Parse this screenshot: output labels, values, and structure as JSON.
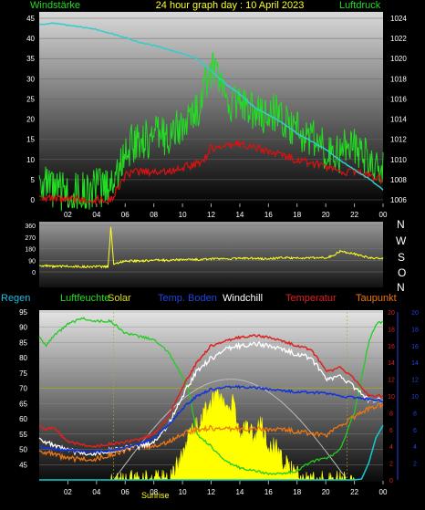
{
  "header": {
    "left": "Windstärke",
    "title": "24 hour graph day : 10 April 2023",
    "right": "Luftdruck",
    "legend2": [
      "Regen",
      "Luftfeuchte",
      "Solar",
      "Temp. Boden",
      "Windchill",
      "Temperatur",
      "Taupunkt"
    ]
  },
  "compass": [
    "N",
    "W",
    "S",
    "O",
    "N"
  ],
  "sunrise_label": "Sunrise",
  "colors": {
    "wind_gust": "#22dd22",
    "wind_avg": "#dd1111",
    "pressure": "#33cccc",
    "wind_dir": "#ffff22",
    "humidity": "#22cc22",
    "solar": "#ffff00",
    "soil": "#1133dd",
    "windchill": "#ffffff",
    "temperature": "#dd2222",
    "dewpoint": "#ee7711",
    "rain": "#11cccc"
  },
  "chart_data": [
    {
      "type": "line",
      "title": "24 hour graph day : 10 April 2023",
      "x_ticks": [
        "02",
        "04",
        "06",
        "08",
        "10",
        "12",
        "14",
        "16",
        "18",
        "20",
        "22",
        "00"
      ],
      "ylim_left": [
        0,
        45
      ],
      "yticks_left": [
        "0",
        "5",
        "10",
        "15",
        "20",
        "25",
        "30",
        "35",
        "40",
        "45"
      ],
      "ylim_right": [
        1006,
        1024
      ],
      "yticks_right": [
        "1006",
        "1008",
        "1010",
        "1012",
        "1014",
        "1016",
        "1018",
        "1020",
        "1022",
        "1024"
      ],
      "series": [
        {
          "name": "Windstärke",
          "x": [
            0,
            0.5,
            1,
            1.5,
            2,
            2.5,
            3,
            3.5,
            4,
            4.5,
            5,
            5.5,
            6,
            6.5,
            7,
            7.5,
            8,
            8.5,
            9,
            9.5,
            10,
            10.5,
            11,
            11.5,
            12,
            12.5,
            13,
            13.5,
            14,
            14.5,
            15,
            15.5,
            16,
            16.5,
            17,
            17.5,
            18,
            18.5,
            19,
            19.5,
            20,
            20.5,
            21,
            21.5,
            22,
            22.5,
            23,
            23.5,
            24
          ],
          "y": [
            6,
            3,
            2,
            2,
            2,
            2,
            2,
            2,
            3,
            3,
            4,
            7,
            12,
            14,
            15,
            15,
            16,
            16,
            16,
            17,
            18,
            20,
            22,
            28,
            32,
            30,
            25,
            24,
            24,
            23,
            22,
            22,
            20,
            22,
            19,
            18,
            17,
            16,
            16,
            15,
            12,
            12,
            11,
            15,
            14,
            12,
            10,
            9,
            8
          ]
        },
        {
          "name": "Wind avg",
          "x": [
            0,
            1,
            2,
            3,
            4,
            4.5,
            5,
            5.5,
            6,
            7,
            8,
            9,
            10,
            11,
            11.5,
            12,
            13,
            14,
            15,
            16,
            17,
            18,
            19,
            20,
            21,
            22,
            23,
            24
          ],
          "y": [
            1,
            0,
            0,
            0,
            0,
            0,
            0,
            3,
            6,
            7,
            7,
            7,
            8,
            9,
            10,
            13,
            13,
            14,
            13,
            12,
            11,
            10,
            9,
            8,
            7,
            7,
            6,
            5
          ]
        },
        {
          "name": "Luftdruck",
          "x": [
            0,
            1,
            2,
            3,
            4,
            5,
            6,
            7,
            8,
            9,
            10,
            11,
            12,
            13,
            14,
            15,
            16,
            17,
            18,
            19,
            20,
            21,
            22,
            23,
            24
          ],
          "y": [
            1023.4,
            1023.5,
            1023.3,
            1023.1,
            1022.9,
            1022.5,
            1022.1,
            1021.6,
            1021.3,
            1020.9,
            1020.5,
            1020.0,
            1018.8,
            1017.5,
            1016.5,
            1015.2,
            1014.4,
            1013.6,
            1012.6,
            1011.8,
            1011.0,
            1009.9,
            1009.0,
            1008.1,
            1007.0
          ]
        }
      ]
    },
    {
      "type": "line",
      "ylim": [
        0,
        360
      ],
      "yticks": [
        "0",
        "90",
        "180",
        "270",
        "360"
      ],
      "series": [
        {
          "name": "Wind direction",
          "x": [
            0,
            0.5,
            1,
            2,
            3,
            4,
            4.8,
            5,
            5.2,
            6,
            7,
            8,
            9,
            10,
            11,
            12,
            13,
            14,
            15,
            16,
            17,
            18,
            19,
            20,
            20.5,
            21,
            22,
            23,
            24
          ],
          "y": [
            50,
            45,
            40,
            45,
            40,
            40,
            40,
            350,
            60,
            85,
            85,
            90,
            90,
            95,
            95,
            100,
            100,
            105,
            105,
            100,
            110,
            105,
            110,
            110,
            125,
            160,
            140,
            110,
            105
          ]
        }
      ]
    },
    {
      "type": "line",
      "x_ticks": [
        "02",
        "04",
        "06",
        "08",
        "10",
        "12",
        "14",
        "16",
        "18",
        "20",
        "22",
        "00"
      ],
      "ylim_left": [
        40,
        95
      ],
      "yticks_left": [
        "45",
        "50",
        "55",
        "60",
        "65",
        "70",
        "75",
        "80",
        "85",
        "90",
        "95"
      ],
      "ylim_mid": [
        0,
        20
      ],
      "yticks_mid": [
        "0",
        "2",
        "4",
        "6",
        "8",
        "10",
        "12",
        "14",
        "16",
        "18",
        "20"
      ],
      "ylim_right": [
        0,
        20
      ],
      "yticks_right": [
        "2",
        "4",
        "6",
        "8",
        "10",
        "12",
        "14",
        "16",
        "18",
        "20"
      ],
      "series": [
        {
          "name": "Luftfeuchte",
          "x": [
            0,
            0.5,
            1,
            2,
            3,
            4,
            5,
            6,
            7,
            8,
            9,
            10,
            10.5,
            11,
            12,
            13,
            14,
            15,
            16,
            17,
            18,
            19,
            20,
            20.5,
            21,
            22,
            23,
            23.5,
            24
          ],
          "y": [
            87,
            84,
            87,
            91,
            93,
            92,
            92,
            88,
            87,
            86,
            82,
            74,
            68,
            55,
            51,
            46,
            44,
            43,
            42,
            42,
            43,
            46,
            47,
            48,
            50,
            62,
            85,
            91,
            92
          ]
        },
        {
          "name": "Solar",
          "x": [
            5,
            6,
            7,
            8,
            9,
            9.5,
            10,
            10.5,
            11,
            11.5,
            12,
            12.5,
            13,
            13.5,
            14,
            14.5,
            15,
            15.5,
            16,
            16.5,
            17,
            17.5,
            18,
            19,
            20,
            21,
            22
          ],
          "y": [
            0,
            0,
            0,
            0,
            0.2,
            1.2,
            3,
            5.5,
            6.5,
            8,
            9,
            10,
            8.5,
            9.5,
            5,
            6.5,
            5,
            7,
            3.5,
            4,
            2,
            1.5,
            0.5,
            0,
            0,
            0,
            0
          ]
        },
        {
          "name": "Temp. Boden",
          "x": [
            0,
            1,
            2,
            3,
            4,
            5,
            6,
            7,
            8,
            9,
            10,
            11,
            12,
            13,
            14,
            15,
            16,
            17,
            18,
            19,
            20,
            21,
            22,
            23,
            24
          ],
          "y": [
            4,
            3.6,
            3.5,
            3.4,
            3.4,
            3.5,
            3.8,
            4.2,
            5,
            6.5,
            8.5,
            10,
            10.8,
            11,
            11.1,
            11,
            10.8,
            10.6,
            10.5,
            10.4,
            10.3,
            10,
            9.8,
            9.6,
            9.4
          ]
        },
        {
          "name": "Windchill",
          "x": [
            0,
            0.5,
            1,
            2,
            3,
            4,
            5,
            6,
            7,
            8,
            9,
            10,
            11,
            12,
            13,
            14,
            15,
            16,
            17,
            18,
            19,
            20,
            20.5,
            21,
            22,
            23,
            24
          ],
          "y": [
            5,
            4.5,
            4,
            3.5,
            3.2,
            3.2,
            3.5,
            3.8,
            4,
            4.5,
            6.5,
            10,
            13,
            14.5,
            15.5,
            16,
            16.2,
            16,
            15.5,
            15,
            14.5,
            12,
            12,
            12.5,
            11,
            9.5,
            9.5
          ]
        },
        {
          "name": "Temperatur",
          "x": [
            0,
            0.5,
            1,
            2,
            3,
            4,
            5,
            6,
            7,
            8,
            9,
            10,
            11,
            12,
            13,
            14,
            15,
            16,
            17,
            18,
            19,
            20,
            20.5,
            21,
            22,
            23,
            24
          ],
          "y": [
            6.5,
            6,
            6.2,
            4.5,
            4.2,
            4,
            4.3,
            4.5,
            4.8,
            5.5,
            7.5,
            11,
            14,
            16,
            16.5,
            17,
            17.2,
            17,
            16.5,
            16,
            15.5,
            13,
            13,
            13.5,
            12,
            10,
            10
          ]
        },
        {
          "name": "Taupunkt",
          "x": [
            0,
            1,
            2,
            3,
            4,
            5,
            6,
            7,
            8,
            9,
            10,
            11,
            12,
            13,
            14,
            15,
            16,
            17,
            18,
            19,
            20,
            21,
            22,
            23,
            24
          ],
          "y": [
            3.5,
            3,
            2.5,
            2.5,
            2.5,
            3,
            3.5,
            4,
            4,
            4.5,
            5.5,
            6,
            6.2,
            6,
            6.1,
            6.1,
            6,
            6,
            5.8,
            5.5,
            5.2,
            6.5,
            7.5,
            8.5,
            9
          ]
        },
        {
          "name": "Regen",
          "x": [
            0,
            21,
            22,
            22.5,
            23,
            23.5,
            24
          ],
          "y": [
            0,
            0,
            0,
            0.1,
            2,
            5,
            6.5
          ]
        }
      ]
    }
  ]
}
